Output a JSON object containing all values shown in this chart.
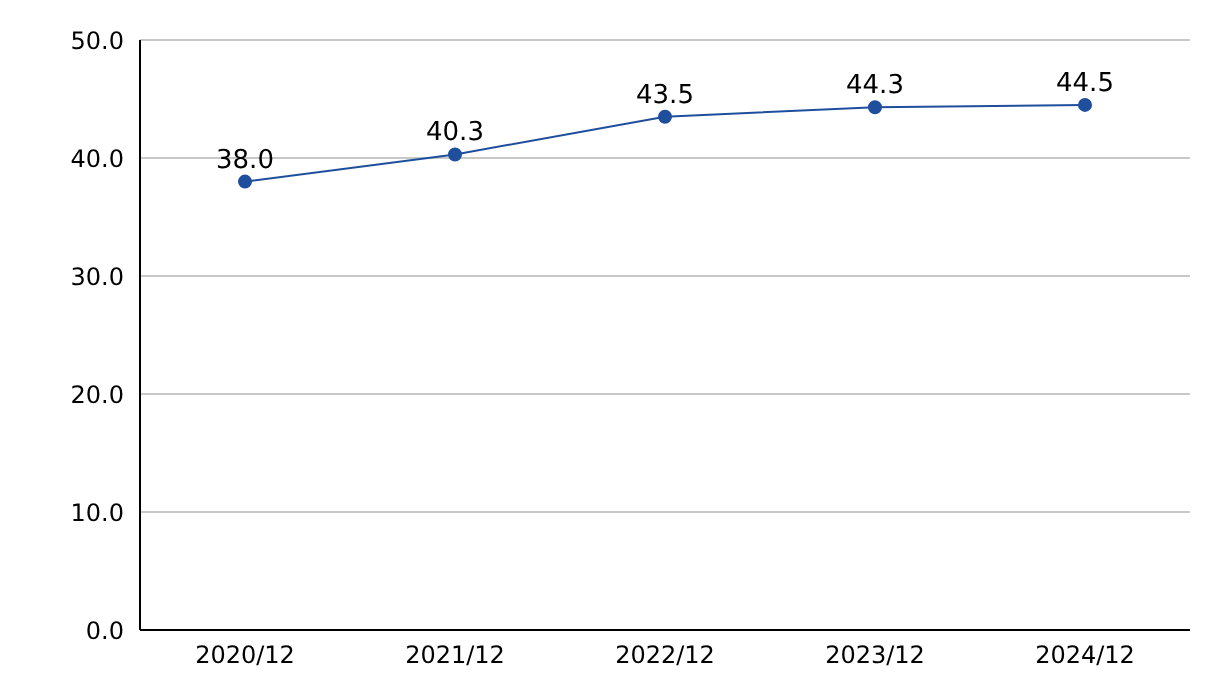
{
  "chart_data": {
    "type": "line",
    "categories": [
      "2020/12",
      "2021/12",
      "2022/12",
      "2023/12",
      "2024/12"
    ],
    "series": [
      {
        "color": "#1f4e9c",
        "values": [
          38.0,
          40.3,
          43.5,
          44.3,
          44.5
        ],
        "value_labels": [
          "38.0",
          "40.3",
          "43.5",
          "44.3",
          "44.5"
        ]
      }
    ],
    "ylim": [
      0,
      50
    ],
    "yticks": [
      {
        "value": 0,
        "label": "0.0"
      },
      {
        "value": 10,
        "label": "10.0"
      },
      {
        "value": 20,
        "label": "20.0"
      },
      {
        "value": 30,
        "label": "30.0"
      },
      {
        "value": 40,
        "label": "40.0"
      },
      {
        "value": 50,
        "label": "50.0"
      }
    ],
    "grid": "y",
    "marker": "circle",
    "line_style": "solid"
  }
}
